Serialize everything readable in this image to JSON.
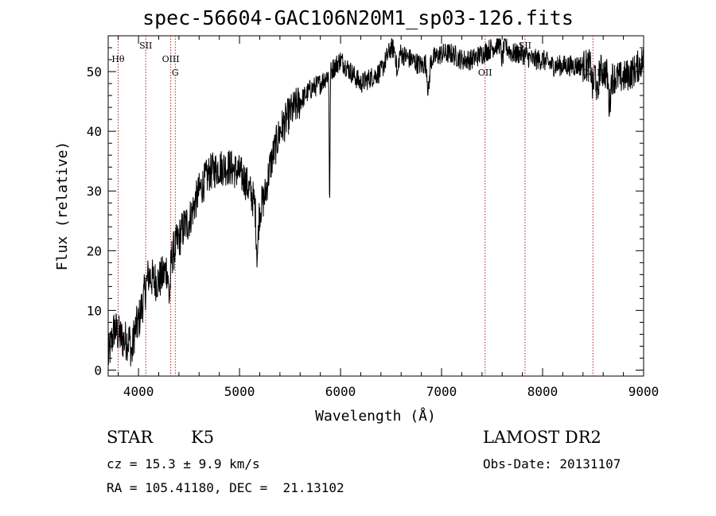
{
  "chart_data": {
    "type": "line",
    "title": "spec-56604-GAC106N20M1_sp03-126.fits",
    "xlabel": "Wavelength (Å)",
    "ylabel": "Flux (relative)",
    "xlim": [
      3700,
      9000
    ],
    "ylim": [
      -1,
      56
    ],
    "xticks": [
      4000,
      5000,
      6000,
      7000,
      8000,
      9000
    ],
    "xticks_labels": [
      "4000",
      "5000",
      "6000",
      "7000",
      "8000",
      "9000"
    ],
    "yticks": [
      0,
      10,
      20,
      30,
      40,
      50
    ],
    "yticks_labels": [
      "0",
      "10",
      "20",
      "30",
      "40",
      "50"
    ],
    "grid": false,
    "line_color": "#000000",
    "marker_color": "#b22222",
    "continuum": {
      "x": [
        3700,
        3760,
        3800,
        3850,
        3900,
        3950,
        4000,
        4050,
        4100,
        4150,
        4200,
        4250,
        4300,
        4350,
        4400,
        4450,
        4500,
        4600,
        4700,
        4800,
        4900,
        5000,
        5050,
        5100,
        5150,
        5200,
        5250,
        5300,
        5400,
        5500,
        5600,
        5700,
        5800,
        5900,
        6000,
        6100,
        6200,
        6300,
        6400,
        6500,
        6600,
        6700,
        6800,
        6900,
        7000,
        7100,
        7200,
        7300,
        7400,
        7500,
        7600,
        7700,
        7800,
        7900,
        8000,
        8100,
        8200,
        8300,
        8400,
        8500,
        8600,
        8700,
        8800,
        8900,
        9000
      ],
      "y": [
        2,
        7,
        6,
        5,
        5,
        6,
        8,
        12,
        16,
        15,
        15,
        16,
        18,
        20,
        22,
        24,
        25,
        30,
        33,
        34,
        34,
        33,
        32,
        30,
        28,
        27,
        29,
        34,
        40,
        43,
        45,
        47,
        48,
        50,
        52,
        50,
        48,
        49,
        50,
        54,
        53,
        52,
        51,
        52,
        53,
        53,
        52,
        52,
        53,
        54,
        55,
        53,
        53,
        52,
        52,
        51,
        51,
        51,
        51,
        51,
        50,
        49,
        49,
        50,
        52
      ]
    },
    "absorption_features": [
      {
        "x": 3934,
        "depth": 3
      },
      {
        "x": 4305,
        "depth": 6
      },
      {
        "x": 5175,
        "depth": 8
      },
      {
        "x": 5892,
        "depth": 22
      },
      {
        "x": 6563,
        "depth": 4
      },
      {
        "x": 6870,
        "depth": 5
      },
      {
        "x": 7600,
        "depth": 3
      },
      {
        "x": 8498,
        "depth": 4
      },
      {
        "x": 8542,
        "depth": 5
      },
      {
        "x": 8662,
        "depth": 5
      }
    ],
    "line_markers": [
      {
        "label": "Hθ",
        "x": 3798,
        "row": 1
      },
      {
        "label": "SII",
        "x": 4072,
        "row": 0
      },
      {
        "label": "OIII",
        "x": 4319,
        "row": 1
      },
      {
        "label": "G",
        "x": 4364,
        "row": 2
      },
      {
        "label": "OII",
        "x": 7431,
        "row": 2
      },
      {
        "label": "SII",
        "x": 7826,
        "row": 0
      },
      {
        "label": "Ca II",
        "x": 8498,
        "row": 2
      }
    ]
  },
  "info": {
    "object_class": "STAR",
    "subclass": "K5",
    "survey": "LAMOST DR2",
    "cz": "cz = 15.3 ± 9.9 km/s",
    "obs_date": "Obs-Date: 20131107",
    "coords": "RA = 105.41180, DEC =  21.13102"
  }
}
